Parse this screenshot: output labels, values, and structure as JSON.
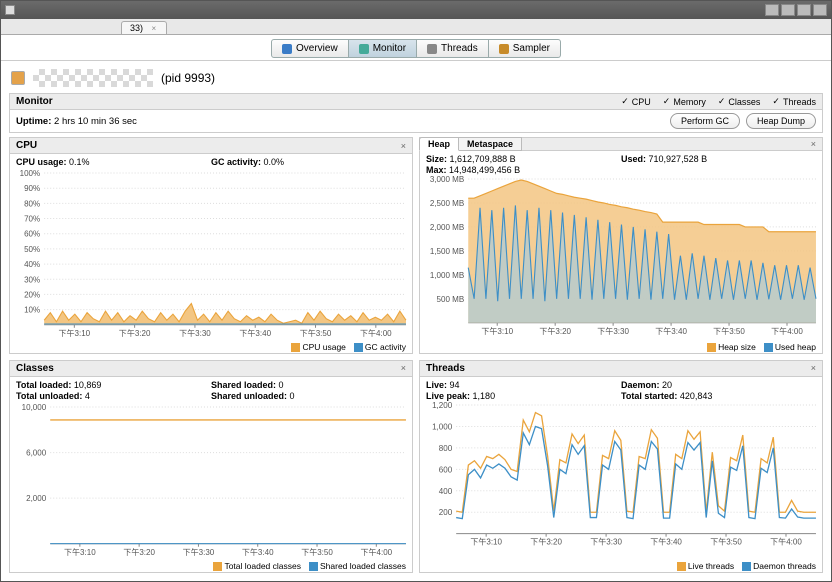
{
  "window": {
    "file_tab": "33)",
    "file_tab_close": "×"
  },
  "main_tabs": [
    {
      "label": "Overview",
      "icon_color": "#3a7cc7"
    },
    {
      "label": "Monitor",
      "icon_color": "#4a9",
      "active": true
    },
    {
      "label": "Threads",
      "icon_color": "#888"
    },
    {
      "label": "Sampler",
      "icon_color": "#c78b2a"
    }
  ],
  "app": {
    "pid_text": "(pid 9993)"
  },
  "monitor": {
    "title": "Monitor",
    "checks": [
      "CPU",
      "Memory",
      "Classes",
      "Threads"
    ],
    "uptime_label": "Uptime:",
    "uptime_value": "2 hrs 10 min 36 sec",
    "buttons": {
      "gc": "Perform GC",
      "heapdump": "Heap Dump"
    }
  },
  "colors": {
    "orange": "#eaa43c",
    "orange_fill": "#f3c683",
    "blue": "#3d8fc7",
    "blue_fill": "#9fcbe6",
    "grid": "#dddddd",
    "axis": "#555555",
    "panel_bg": "#ffffff"
  },
  "time_ticks": [
    "下午3:10",
    "下午3:20",
    "下午3:30",
    "下午3:40",
    "下午3:50",
    "下午4:00"
  ],
  "cpu": {
    "title": "CPU",
    "stat1_label": "CPU usage:",
    "stat1_value": "0.1%",
    "stat2_label": "GC activity:",
    "stat2_value": "0.0%",
    "y_ticks": [
      "100%",
      "90%",
      "80%",
      "70%",
      "60%",
      "50%",
      "40%",
      "30%",
      "20%",
      "10%"
    ],
    "legend": [
      "CPU usage",
      "GC activity"
    ],
    "series_orange": [
      3,
      8,
      2,
      9,
      3,
      7,
      2,
      8,
      4,
      2,
      9,
      3,
      8,
      2,
      6,
      3,
      9,
      4,
      2,
      8,
      3,
      7,
      2,
      9,
      14,
      3,
      7,
      2,
      8,
      3,
      9,
      4,
      2,
      6,
      3,
      5,
      2,
      7,
      3,
      1,
      2,
      3,
      1,
      8,
      3,
      9,
      4,
      2,
      7,
      3,
      6,
      2,
      8,
      3,
      5,
      3,
      7,
      2,
      9,
      3
    ],
    "series_blue_baseline": 0.5
  },
  "heap": {
    "title_tab1": "Heap",
    "title_tab2": "Metaspace",
    "size_label": "Size:",
    "size_value": "1,612,709,888 B",
    "max_label": "Max:",
    "max_value": "14,948,499,456 B",
    "used_label": "Used:",
    "used_value": "710,927,528 B",
    "y_ticks": [
      "3,000 MB",
      "2,500 MB",
      "2,000 MB",
      "1,500 MB",
      "1,000 MB",
      "500 MB"
    ],
    "legend": [
      "Heap size",
      "Used heap"
    ],
    "heap_size_values": [
      2600,
      2600,
      2650,
      2700,
      2750,
      2800,
      2850,
      2900,
      2950,
      2980,
      2950,
      2900,
      2850,
      2800,
      2750,
      2700,
      2680,
      2650,
      2620,
      2600,
      2580,
      2550,
      2520,
      2500,
      2470,
      2450,
      2420,
      2400,
      2370,
      2350,
      2320,
      2300,
      2270,
      2100,
      2100,
      2100,
      2100,
      2100,
      2100,
      2100,
      2050,
      2050,
      2050,
      2050,
      2050,
      2050,
      2050,
      2000,
      2000,
      2000,
      2000,
      1900,
      1900,
      1900,
      1900,
      1900,
      1900,
      1900,
      1900,
      1900
    ],
    "used_heap_values": [
      1150,
      500,
      2400,
      500,
      2350,
      450,
      2400,
      500,
      2450,
      500,
      2350,
      500,
      2400,
      450,
      2350,
      500,
      2300,
      500,
      2250,
      500,
      2200,
      480,
      2150,
      500,
      2100,
      500,
      2050,
      480,
      2000,
      500,
      1950,
      480,
      1900,
      500,
      1850,
      480,
      1400,
      480,
      1450,
      500,
      1400,
      480,
      1350,
      500,
      1300,
      480,
      1300,
      500,
      1300,
      480,
      1250,
      490,
      1200,
      480,
      1200,
      500,
      1200,
      480,
      1150,
      500
    ]
  },
  "classes": {
    "title": "Classes",
    "loaded_label": "Total loaded:",
    "loaded_value": "10,869",
    "unloaded_label": "Total unloaded:",
    "unloaded_value": "4",
    "shared_loaded_label": "Shared loaded:",
    "shared_loaded_value": "0",
    "shared_unloaded_label": "Shared unloaded:",
    "shared_unloaded_value": "0",
    "y_ticks": [
      "10,000",
      "6,000",
      "2,000"
    ],
    "legend": [
      "Total loaded classes",
      "Shared loaded classes"
    ],
    "value_line": 10869,
    "ymax": 12000
  },
  "threads": {
    "title": "Threads",
    "live_label": "Live:",
    "live_value": "94",
    "peak_label": "Live peak:",
    "peak_value": "1,180",
    "daemon_label": "Daemon:",
    "daemon_value": "20",
    "started_label": "Total started:",
    "started_value": "420,843",
    "y_ticks": [
      "1,200",
      "1,000",
      "800",
      "600",
      "400",
      "200"
    ],
    "legend": [
      "Live threads",
      "Daemon threads"
    ],
    "live_values": [
      210,
      200,
      640,
      680,
      610,
      720,
      700,
      740,
      690,
      600,
      580,
      1060,
      950,
      1130,
      1100,
      720,
      210,
      690,
      660,
      930,
      840,
      920,
      200,
      200,
      730,
      700,
      960,
      870,
      210,
      200,
      720,
      700,
      970,
      890,
      200,
      200,
      740,
      700,
      960,
      880,
      950,
      200,
      760,
      260,
      210,
      710,
      680,
      920,
      210,
      200,
      700,
      660,
      900,
      200,
      200,
      310,
      210,
      200,
      200,
      200
    ],
    "daemon_values": [
      150,
      140,
      550,
      600,
      520,
      640,
      610,
      650,
      610,
      530,
      500,
      940,
      830,
      1000,
      980,
      630,
      150,
      600,
      560,
      830,
      740,
      820,
      150,
      150,
      640,
      600,
      860,
      780,
      150,
      140,
      640,
      600,
      860,
      790,
      145,
      145,
      650,
      600,
      850,
      780,
      850,
      150,
      680,
      190,
      150,
      620,
      590,
      820,
      150,
      140,
      610,
      570,
      800,
      150,
      145,
      230,
      155,
      145,
      145,
      145
    ]
  }
}
